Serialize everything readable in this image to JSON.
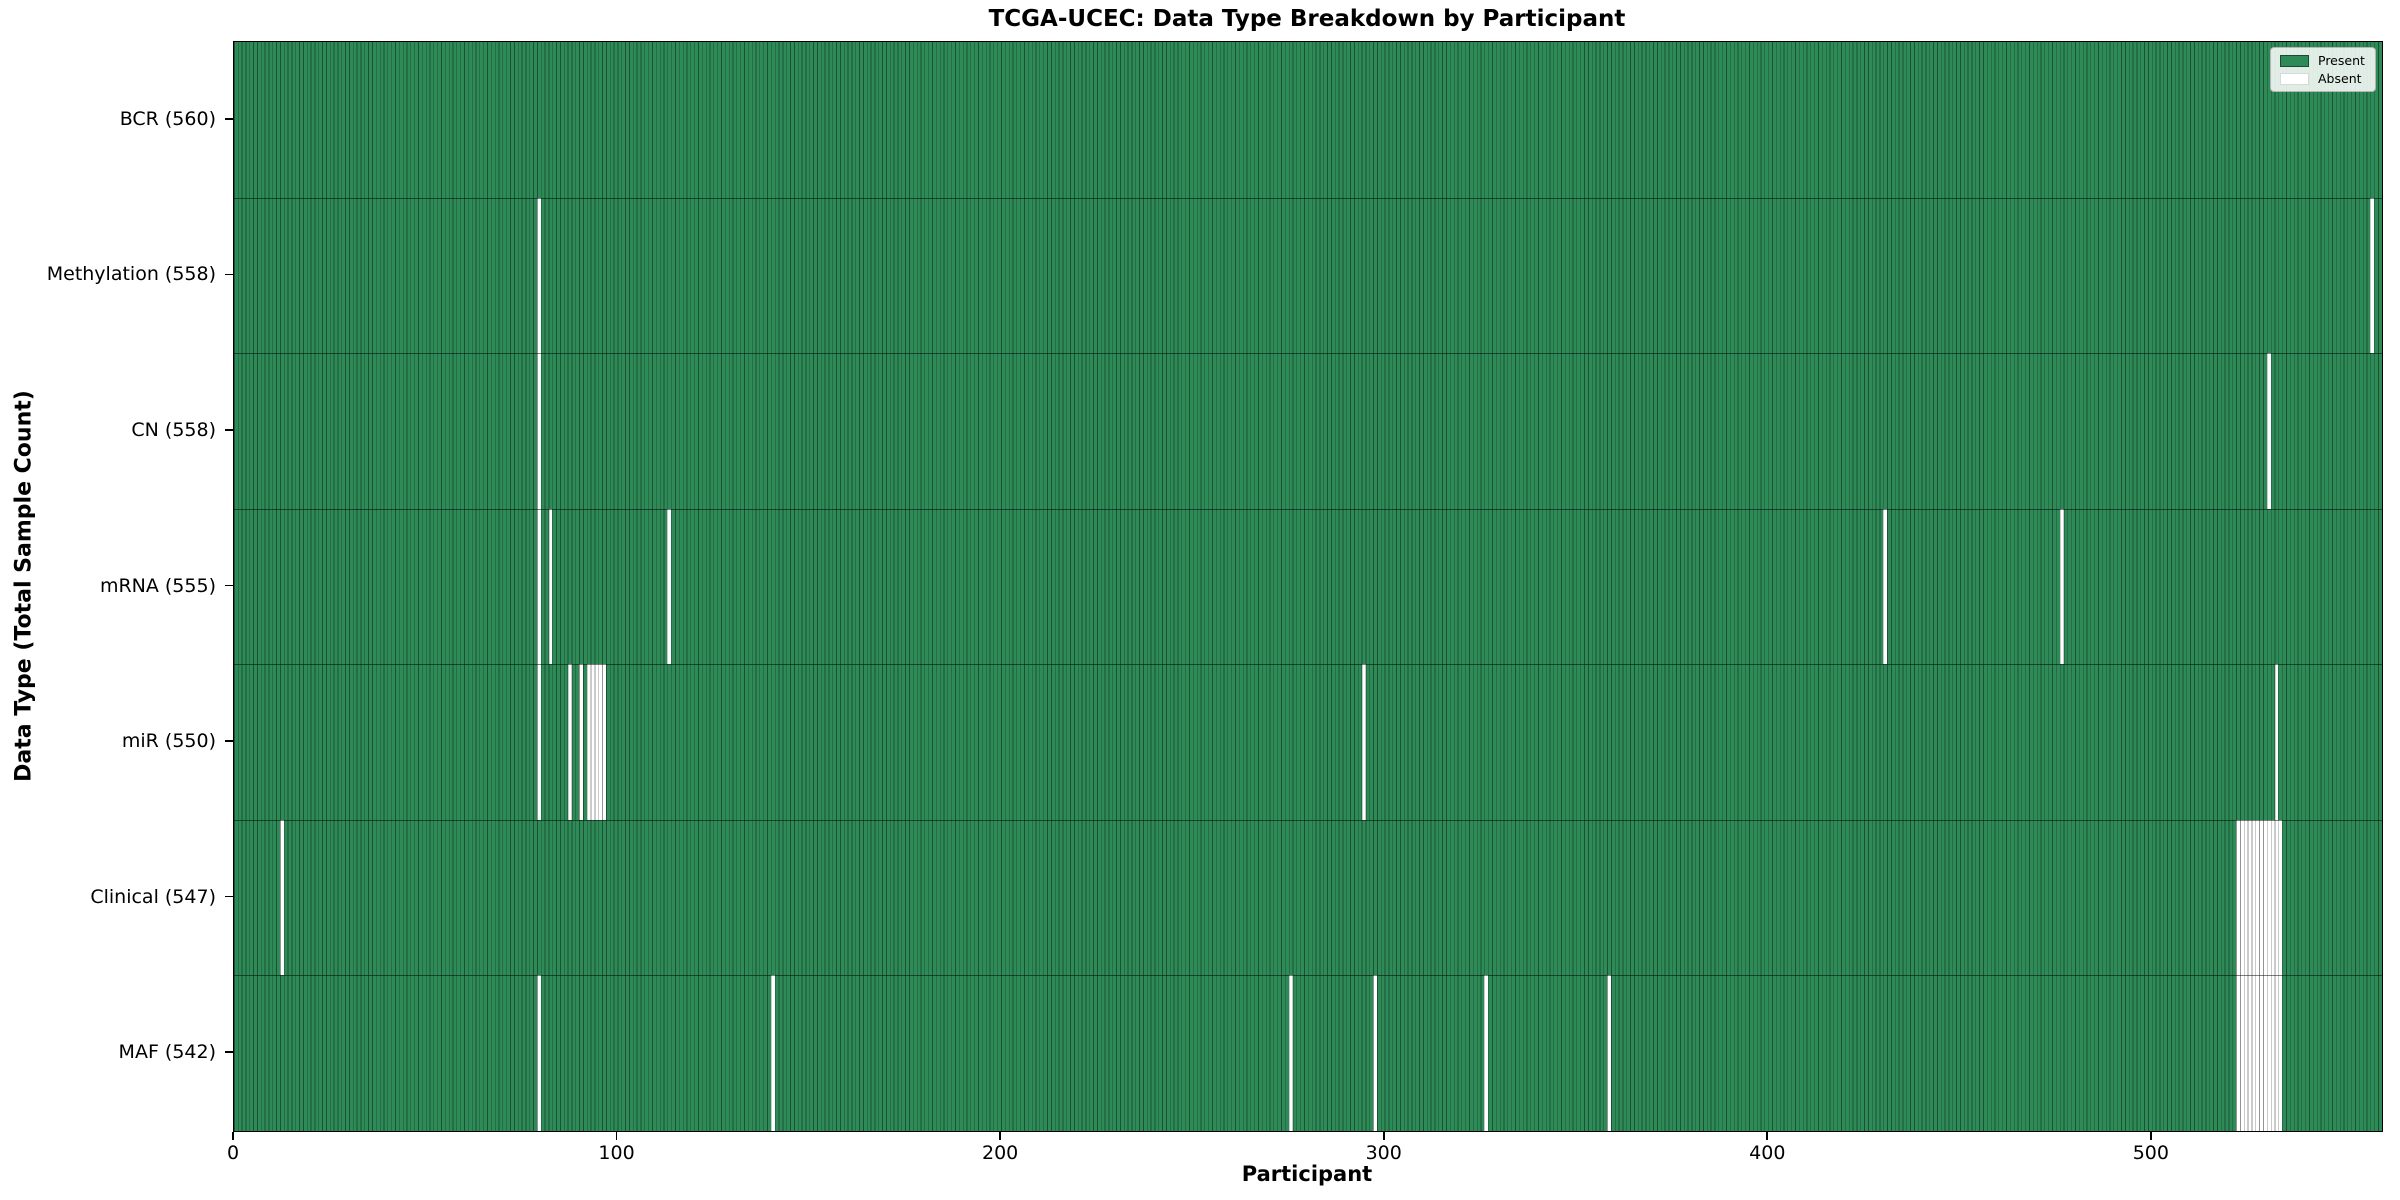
{
  "chart_data": {
    "type": "heatmap",
    "title": "TCGA-UCEC: Data Type Breakdown by Participant",
    "xlabel": "Participant",
    "ylabel": "Data Type (Total Sample Count)",
    "n_participants": 560,
    "x_ticks": [
      0,
      100,
      200,
      300,
      400,
      500
    ],
    "grid": false,
    "legend_position": "upper right",
    "colors": {
      "present": "#2e8b57",
      "absent": "#ffffff",
      "cell_edge": "rgba(0,0,0,0.42)"
    },
    "legend": [
      {
        "label": "Present",
        "color": "#2e8b57"
      },
      {
        "label": "Absent",
        "color": "#ffffff"
      }
    ],
    "rows": [
      {
        "label": "BCR (560)",
        "name": "bcr",
        "total_present": 560,
        "absent_ranges": []
      },
      {
        "label": "Methylation (558)",
        "name": "methylation",
        "total_present": 558,
        "absent_ranges": [
          [
            79,
            1
          ],
          [
            557,
            1
          ]
        ]
      },
      {
        "label": "CN (558)",
        "name": "cn",
        "total_present": 558,
        "absent_ranges": [
          [
            79,
            1
          ],
          [
            530,
            1
          ]
        ]
      },
      {
        "label": "mRNA (555)",
        "name": "mrna",
        "total_present": 555,
        "absent_ranges": [
          [
            79,
            1
          ],
          [
            82,
            1
          ],
          [
            113,
            1
          ],
          [
            430,
            1
          ],
          [
            476,
            1
          ]
        ]
      },
      {
        "label": "miR (550)",
        "name": "mir",
        "total_present": 550,
        "absent_ranges": [
          [
            79,
            1
          ],
          [
            87,
            1
          ],
          [
            90,
            1
          ],
          [
            92,
            5
          ],
          [
            294,
            1
          ],
          [
            532,
            1
          ]
        ]
      },
      {
        "label": "Clinical (547)",
        "name": "clinical",
        "total_present": 547,
        "absent_ranges": [
          [
            12,
            1
          ],
          [
            522,
            12
          ]
        ]
      },
      {
        "label": "MAF (542)",
        "name": "maf",
        "total_present": 542,
        "absent_ranges": [
          [
            79,
            1
          ],
          [
            140,
            1
          ],
          [
            275,
            1
          ],
          [
            297,
            1
          ],
          [
            326,
            1
          ],
          [
            358,
            1
          ],
          [
            522,
            12
          ]
        ]
      }
    ]
  }
}
